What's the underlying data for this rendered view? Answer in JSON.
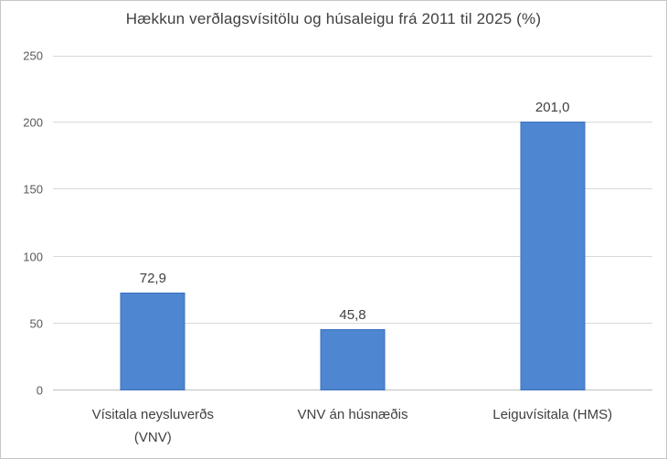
{
  "chart_data": {
    "type": "bar",
    "title": "Hækkun verðlagsvísitölu og húsaleigu frá 2011 til 2025 (%)",
    "categories": [
      "Vísitala neysluverðs (VNV)",
      "VNV án húsnæðis",
      "Leiguvísitala (HMS)"
    ],
    "categories_lines": [
      [
        "Vísitala neysluverðs",
        "(VNV)"
      ],
      [
        "VNV án húsnæðis",
        ""
      ],
      [
        "Leiguvísitala (HMS)",
        ""
      ]
    ],
    "values": [
      72.9,
      45.8,
      201.0
    ],
    "value_labels": [
      "72,9",
      "45,8",
      "201,0"
    ],
    "xlabel": "",
    "ylabel": "",
    "ylim": [
      0,
      250
    ],
    "yticks": [
      0,
      50,
      100,
      150,
      200,
      250
    ],
    "ytick_labels": [
      "0",
      "50",
      "100",
      "150",
      "200",
      "250"
    ],
    "grid": true,
    "legend": "none",
    "bar_fill_color": "#4e86d1",
    "bar_border_color": "#3a70be",
    "gridline_color": "#d9d9d9",
    "title_color": "#404040",
    "axis_label_color": "#595959"
  }
}
